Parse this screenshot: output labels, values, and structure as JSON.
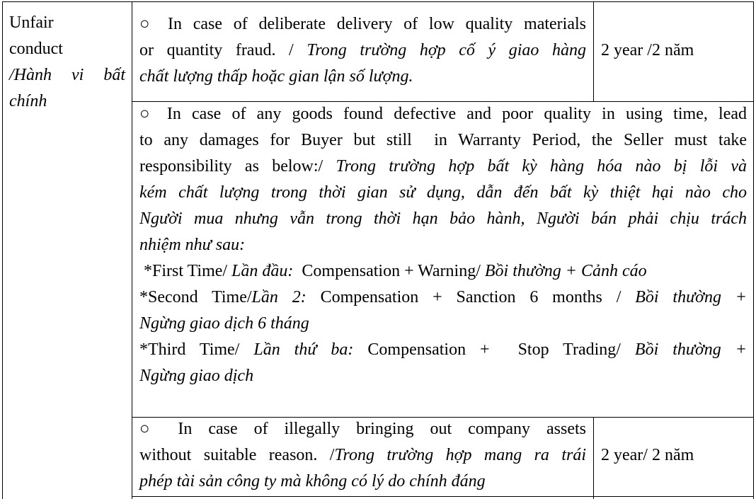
{
  "table": {
    "category": {
      "lines": [
        {
          "justify": false,
          "segs": [
            {
              "t": "Unfair",
              "i": false
            }
          ]
        },
        {
          "justify": false,
          "segs": [
            {
              "t": "conduct",
              "i": false
            }
          ]
        },
        {
          "justify": true,
          "segs": [
            {
              "t": "/Hành vi bất",
              "i": true
            }
          ]
        },
        {
          "justify": false,
          "segs": [
            {
              "t": "chính",
              "i": true
            }
          ]
        }
      ]
    },
    "rows": [
      {
        "description": [
          {
            "justify": true,
            "segs": [
              {
                "t": "○ In case of deliberate delivery of low quality materials",
                "i": false
              }
            ]
          },
          {
            "justify": true,
            "segs": [
              {
                "t": "or quantity fraud. / ",
                "i": false
              },
              {
                "t": "Trong trường hợp cố ý giao hàng",
                "i": true
              }
            ]
          },
          {
            "justify": false,
            "segs": [
              {
                "t": "chất lượng thấp hoặc gian lận số lượng.",
                "i": true
              }
            ]
          }
        ],
        "period": "2 year /2 năm"
      },
      {
        "description": [
          {
            "justify": true,
            "segs": [
              {
                "t": "○ In case of any goods found defective and poor quality in using time, lead",
                "i": false
              }
            ]
          },
          {
            "justify": true,
            "segs": [
              {
                "t": "to any damages for Buyer but still  in Warranty Period, the Seller must take",
                "i": false
              }
            ]
          },
          {
            "justify": true,
            "segs": [
              {
                "t": "responsibility as below:/ ",
                "i": false
              },
              {
                "t": "Trong trường hợp bất kỳ hàng hóa nào bị lỗi và",
                "i": true
              }
            ]
          },
          {
            "justify": true,
            "segs": [
              {
                "t": "kém chất lượng trong thời gian sử dụng, dẫn đến bất kỳ thiệt hại nào cho",
                "i": true
              }
            ]
          },
          {
            "justify": true,
            "segs": [
              {
                "t": "Người mua nhưng vẫn trong thời hạn bảo hành, Người bán phải chịu trách",
                "i": true
              }
            ]
          },
          {
            "justify": false,
            "segs": [
              {
                "t": "nhiệm như sau:",
                "i": true
              }
            ]
          },
          {
            "justify": false,
            "segs": [
              {
                "t": " *First Time/ ",
                "i": false
              },
              {
                "t": "Lần đầu:",
                "i": true
              },
              {
                "t": "  Compensation + Warning/ ",
                "i": false
              },
              {
                "t": "Bồi thường + Cảnh cáo",
                "i": true
              }
            ]
          },
          {
            "justify": true,
            "segs": [
              {
                "t": "*Second Time/",
                "i": false
              },
              {
                "t": "Lần 2:",
                "i": true
              },
              {
                "t": " Compensation + Sanction 6 months / ",
                "i": false
              },
              {
                "t": "Bồi thường +",
                "i": true
              }
            ]
          },
          {
            "justify": false,
            "segs": [
              {
                "t": "Ngừng giao dịch 6 tháng",
                "i": true
              }
            ]
          },
          {
            "justify": true,
            "segs": [
              {
                "t": "*Third Time/ ",
                "i": false
              },
              {
                "t": "Lần thứ ba:",
                "i": true
              },
              {
                "t": " Compensation +  Stop Trading/ ",
                "i": false
              },
              {
                "t": "Bồi thường +",
                "i": true
              }
            ]
          },
          {
            "justify": false,
            "segs": [
              {
                "t": "Ngừng giao dịch",
                "i": true
              }
            ]
          }
        ],
        "period": ""
      },
      {
        "description": [
          {
            "justify": true,
            "segs": [
              {
                "t": "○ In case of illegally bringing out company assets",
                "i": false
              }
            ]
          },
          {
            "justify": true,
            "segs": [
              {
                "t": "without suitable reason. /",
                "i": false
              },
              {
                "t": "Trong trường hợp mang ra trái",
                "i": true
              }
            ]
          },
          {
            "justify": false,
            "segs": [
              {
                "t": "phép tài sản công ty mà không có lý do chính đáng",
                "i": true
              }
            ]
          }
        ],
        "period": "2 year/ 2 năm"
      }
    ]
  }
}
